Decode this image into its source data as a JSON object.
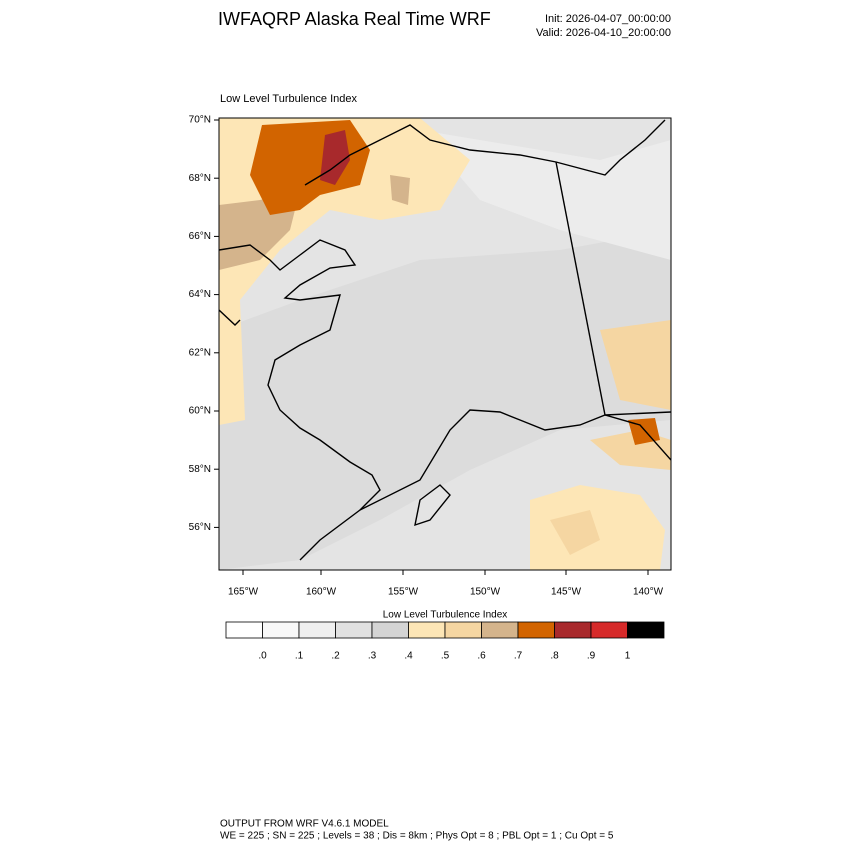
{
  "header": {
    "title": "IWFAQRP Alaska Real Time WRF",
    "init": "Init: 2026-04-07_00:00:00",
    "valid": "Valid: 2026-04-10_20:00:00"
  },
  "map": {
    "title": "Low Level Turbulence Index",
    "lat_labels": [
      "70°N",
      "68°N",
      "66°N",
      "64°N",
      "62°N",
      "60°N",
      "58°N",
      "56°N"
    ],
    "lon_labels": [
      "165°W",
      "160°W",
      "155°W",
      "150°W",
      "145°W",
      "140°W"
    ]
  },
  "colorbar": {
    "title": "Low Level Turbulence Index",
    "colors": [
      "#ffffff",
      "#f8f8f8",
      "#efefef",
      "#e1e1e1",
      "#d4d4d4",
      "#fde6b6",
      "#f5d6a2",
      "#d4b48c",
      "#d26400",
      "#a8292c",
      "#d62a2a",
      "#000000"
    ],
    "labels": [
      ".0",
      ".1",
      ".2",
      ".3",
      ".4",
      ".5",
      ".6",
      ".7",
      ".8",
      ".9",
      "1"
    ]
  },
  "footer": {
    "line1": "OUTPUT FROM WRF V4.6.1 MODEL",
    "line2": "WE = 225 ; SN = 225 ; Levels = 38 ; Dis = 8km ; Phys Opt = 8 ; PBL Opt = 1 ; Cu Opt = 5"
  }
}
